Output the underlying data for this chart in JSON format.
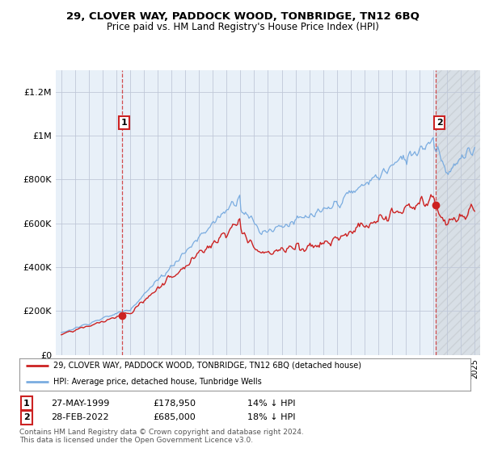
{
  "title": "29, CLOVER WAY, PADDOCK WOOD, TONBRIDGE, TN12 6BQ",
  "subtitle": "Price paid vs. HM Land Registry's House Price Index (HPI)",
  "ylim": [
    0,
    1300000
  ],
  "yticks": [
    0,
    200000,
    400000,
    600000,
    800000,
    1000000,
    1200000
  ],
  "ytick_labels": [
    "£0",
    "£200K",
    "£400K",
    "£600K",
    "£800K",
    "£1M",
    "£1.2M"
  ],
  "hpi_color": "#7aace0",
  "price_color": "#cc2222",
  "annotation_color": "#cc2222",
  "background_color": "#ffffff",
  "chart_bg_color": "#e8f0f8",
  "grid_color": "#c0c8d8",
  "sale1_date": 1999.4,
  "sale1_price": 178950,
  "sale1_label": "1",
  "sale2_date": 2022.15,
  "sale2_price": 685000,
  "sale2_label": "2",
  "legend_line1": "29, CLOVER WAY, PADDOCK WOOD, TONBRIDGE, TN12 6BQ (detached house)",
  "legend_line2": "HPI: Average price, detached house, Tunbridge Wells",
  "footer": "Contains HM Land Registry data © Crown copyright and database right 2024.\nThis data is licensed under the Open Government Licence v3.0.",
  "xmin": 1994.6,
  "xmax": 2025.4
}
